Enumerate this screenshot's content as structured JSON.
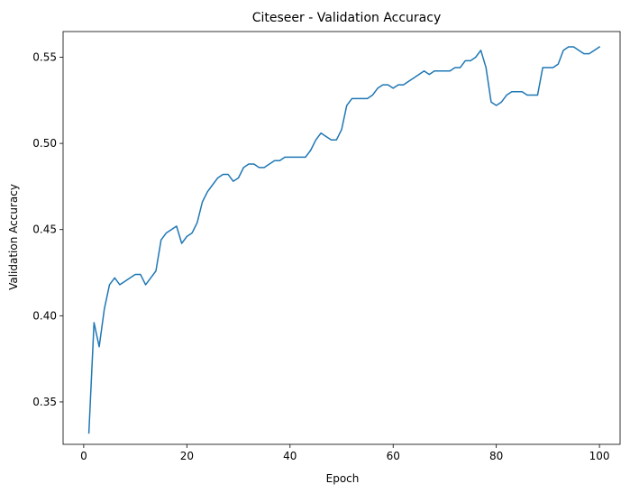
{
  "chart_data": {
    "type": "line",
    "title": "Citeseer - Validation Accuracy",
    "xlabel": "Epoch",
    "ylabel": "Validation Accuracy",
    "xlim": [
      -4,
      104
    ],
    "ylim": [
      0.3254,
      0.5649
    ],
    "xticks": [
      0,
      20,
      40,
      60,
      80,
      100
    ],
    "xtick_labels": [
      "0",
      "20",
      "40",
      "60",
      "80",
      "100"
    ],
    "yticks": [
      0.35,
      0.4,
      0.45,
      0.5,
      0.55
    ],
    "ytick_labels": [
      "0.35",
      "0.40",
      "0.45",
      "0.50",
      "0.55"
    ],
    "grid": false,
    "series": [
      {
        "color": "#1f77b4",
        "x": [
          1,
          2,
          3,
          4,
          5,
          6,
          7,
          8,
          9,
          10,
          11,
          12,
          13,
          14,
          15,
          16,
          17,
          18,
          19,
          20,
          21,
          22,
          23,
          24,
          25,
          26,
          27,
          28,
          29,
          30,
          31,
          32,
          33,
          34,
          35,
          36,
          37,
          38,
          39,
          40,
          41,
          42,
          43,
          44,
          45,
          46,
          47,
          48,
          49,
          50,
          51,
          52,
          53,
          54,
          55,
          56,
          57,
          58,
          59,
          60,
          61,
          62,
          63,
          64,
          65,
          66,
          67,
          68,
          69,
          70,
          71,
          72,
          73,
          74,
          75,
          76,
          77,
          78,
          79,
          80,
          81,
          82,
          83,
          84,
          85,
          86,
          87,
          88,
          89,
          90,
          91,
          92,
          93,
          94,
          95,
          96,
          97,
          98,
          99,
          100
        ],
        "values": [
          0.332,
          0.396,
          0.382,
          0.404,
          0.418,
          0.422,
          0.418,
          0.42,
          0.422,
          0.424,
          0.424,
          0.418,
          0.422,
          0.426,
          0.444,
          0.448,
          0.45,
          0.452,
          0.442,
          0.446,
          0.448,
          0.454,
          0.466,
          0.472,
          0.476,
          0.48,
          0.482,
          0.482,
          0.478,
          0.48,
          0.486,
          0.488,
          0.488,
          0.486,
          0.486,
          0.488,
          0.49,
          0.49,
          0.492,
          0.492,
          0.492,
          0.492,
          0.492,
          0.496,
          0.502,
          0.506,
          0.504,
          0.502,
          0.502,
          0.508,
          0.522,
          0.526,
          0.526,
          0.526,
          0.526,
          0.528,
          0.532,
          0.534,
          0.534,
          0.532,
          0.534,
          0.534,
          0.536,
          0.538,
          0.54,
          0.542,
          0.54,
          0.542,
          0.542,
          0.542,
          0.542,
          0.544,
          0.544,
          0.548,
          0.548,
          0.55,
          0.554,
          0.544,
          0.524,
          0.522,
          0.524,
          0.528,
          0.53,
          0.53,
          0.53,
          0.528,
          0.528,
          0.528,
          0.544,
          0.544,
          0.544,
          0.546,
          0.554,
          0.556,
          0.556,
          0.554,
          0.552,
          0.552,
          0.554,
          0.556
        ]
      }
    ]
  }
}
